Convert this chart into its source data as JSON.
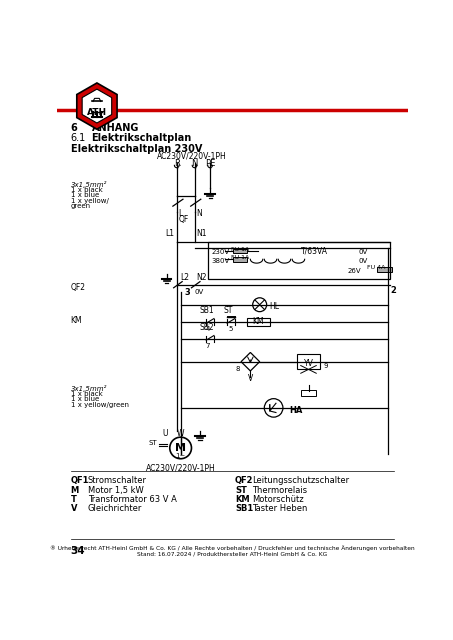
{
  "title_section_num": "6",
  "title_section_text": "ANHANG",
  "subtitle_num": "6.1",
  "subtitle_text": "Elektrikschaltplan",
  "diagram_title": "Elektrikschaltplan 230V",
  "page_number": "34",
  "footer_line1": "® Urheberrecht ATH-Heinl GmbH & Co. KG / Alle Rechte vorbehalten / Druckfehler und technische Änderungen vorbehalten",
  "footer_line2": "Stand: 16.07.2024 / Produkthersteller ATH-Heinl GmbH & Co. KG",
  "legend_left": [
    [
      "QF1",
      "Stromschalter"
    ],
    [
      "M",
      "Motor 1,5 kW"
    ],
    [
      "T",
      "Transformator 63 V A"
    ],
    [
      "V",
      "Gleichrichter"
    ]
  ],
  "legend_right": [
    [
      "QF2",
      "Leitungsschutzschalter"
    ],
    [
      "ST",
      "Thermorelais"
    ],
    [
      "KM",
      "Motorschütz"
    ],
    [
      "SB1",
      "Taster Heben"
    ]
  ],
  "header_line_color": "#cc0000",
  "logo_hex_color": "#cc0000",
  "text_color": "#000000",
  "bg_color": "#ffffff"
}
